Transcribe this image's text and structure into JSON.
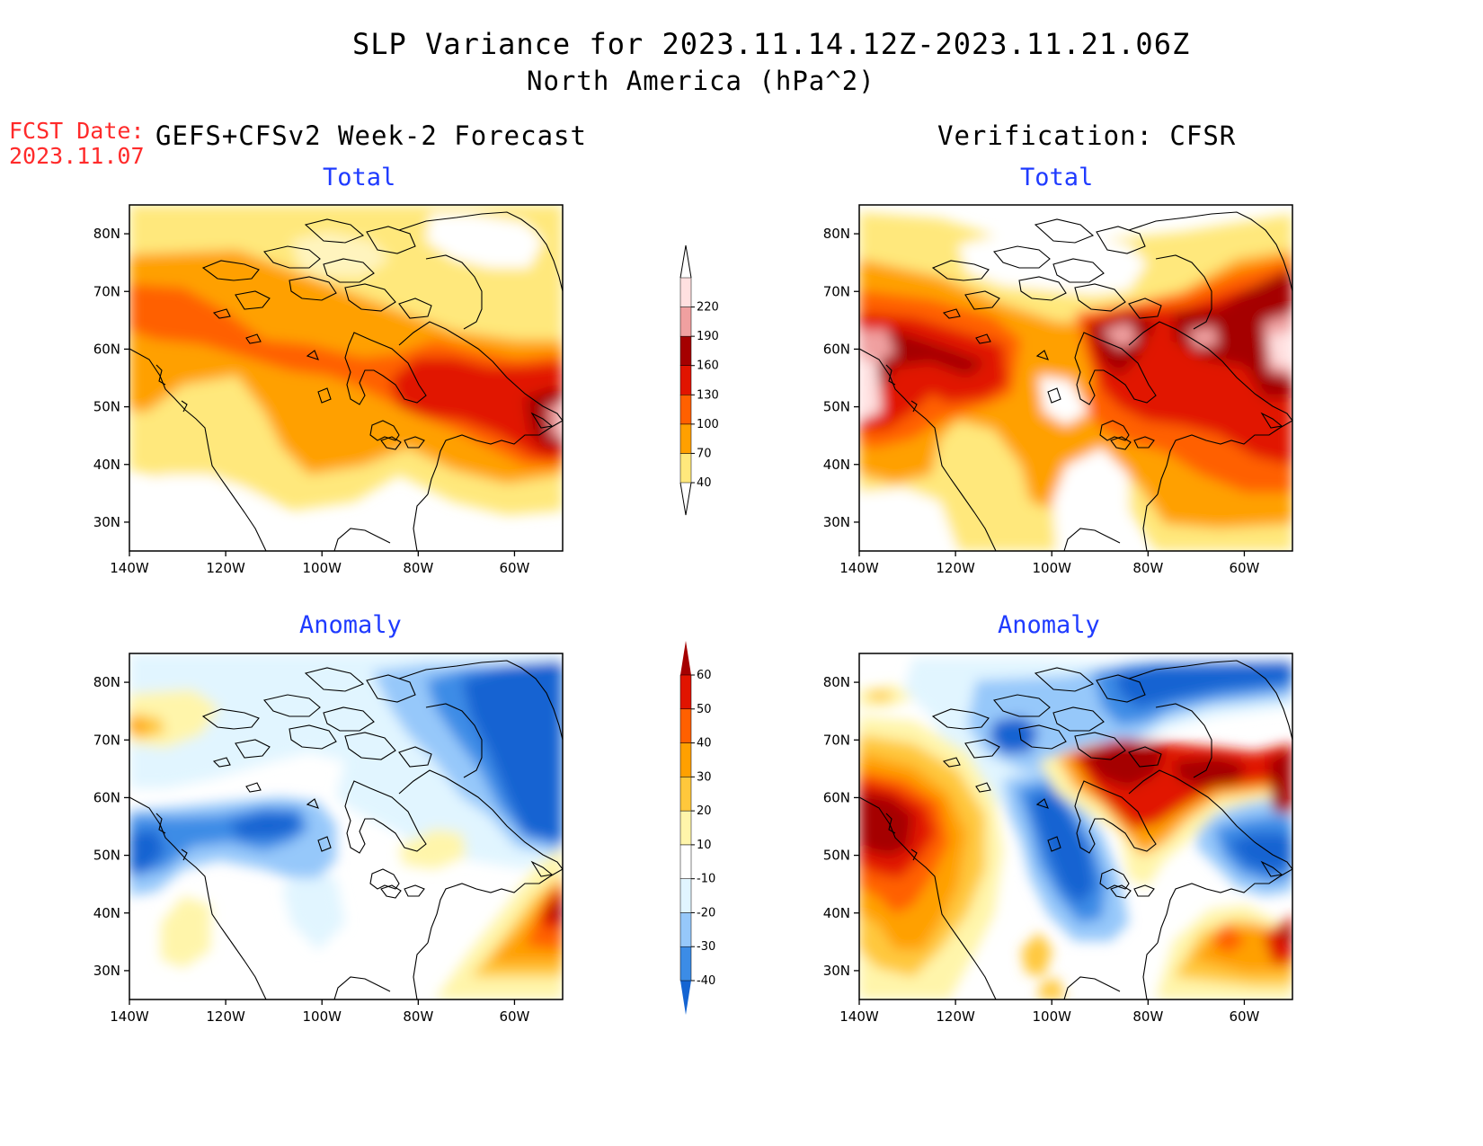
{
  "header": {
    "title": "SLP Variance for 2023.11.14.12Z-2023.11.21.06Z",
    "subtitle": "North America (hPa^2)",
    "fcst_label": "FCST Date:",
    "fcst_date": "2023.11.07",
    "left_col": "GEFS+CFSv2 Week-2 Forecast",
    "right_col": "Verification: CFSR"
  },
  "panels": {
    "fc_total": {
      "title": "Total",
      "source": "GEFS+CFSv2 Week-2 Forecast"
    },
    "ver_total": {
      "title": "Total",
      "source": "Verification: CFSR"
    },
    "fc_anom": {
      "title": "Anomaly",
      "source": "GEFS+CFSv2 Week-2 Forecast"
    },
    "ver_anom": {
      "title": "Anomaly",
      "source": "Verification: CFSR"
    }
  },
  "axes": {
    "lon_ticks": [
      "140W",
      "120W",
      "100W",
      "80W",
      "60W"
    ],
    "lat_ticks": [
      "80N",
      "70N",
      "60N",
      "50N",
      "40N",
      "30N"
    ]
  },
  "colorbars": {
    "total": {
      "labels": [
        "40",
        "70",
        "100",
        "130",
        "160",
        "190",
        "220"
      ],
      "colors": [
        "#ffe87c",
        "#ffa000",
        "#ff6000",
        "#e11400",
        "#a50000",
        "#f0a0a0",
        "#ffe0e0"
      ]
    },
    "anomaly": {
      "labels": [
        "-40",
        "-30",
        "-20",
        "-10",
        "10",
        "20",
        "30",
        "40",
        "50",
        "60"
      ],
      "colors": [
        "#1464d2",
        "#3c8ce6",
        "#96c8fa",
        "#e1f5ff",
        "#ffffff",
        "#fff5aa",
        "#ffc83c",
        "#ffa000",
        "#ff6000",
        "#e11400",
        "#a50000"
      ]
    }
  },
  "legend_colors": {
    "title_blue": "#1f3bff",
    "fcst_red": "#ff2a2a"
  }
}
